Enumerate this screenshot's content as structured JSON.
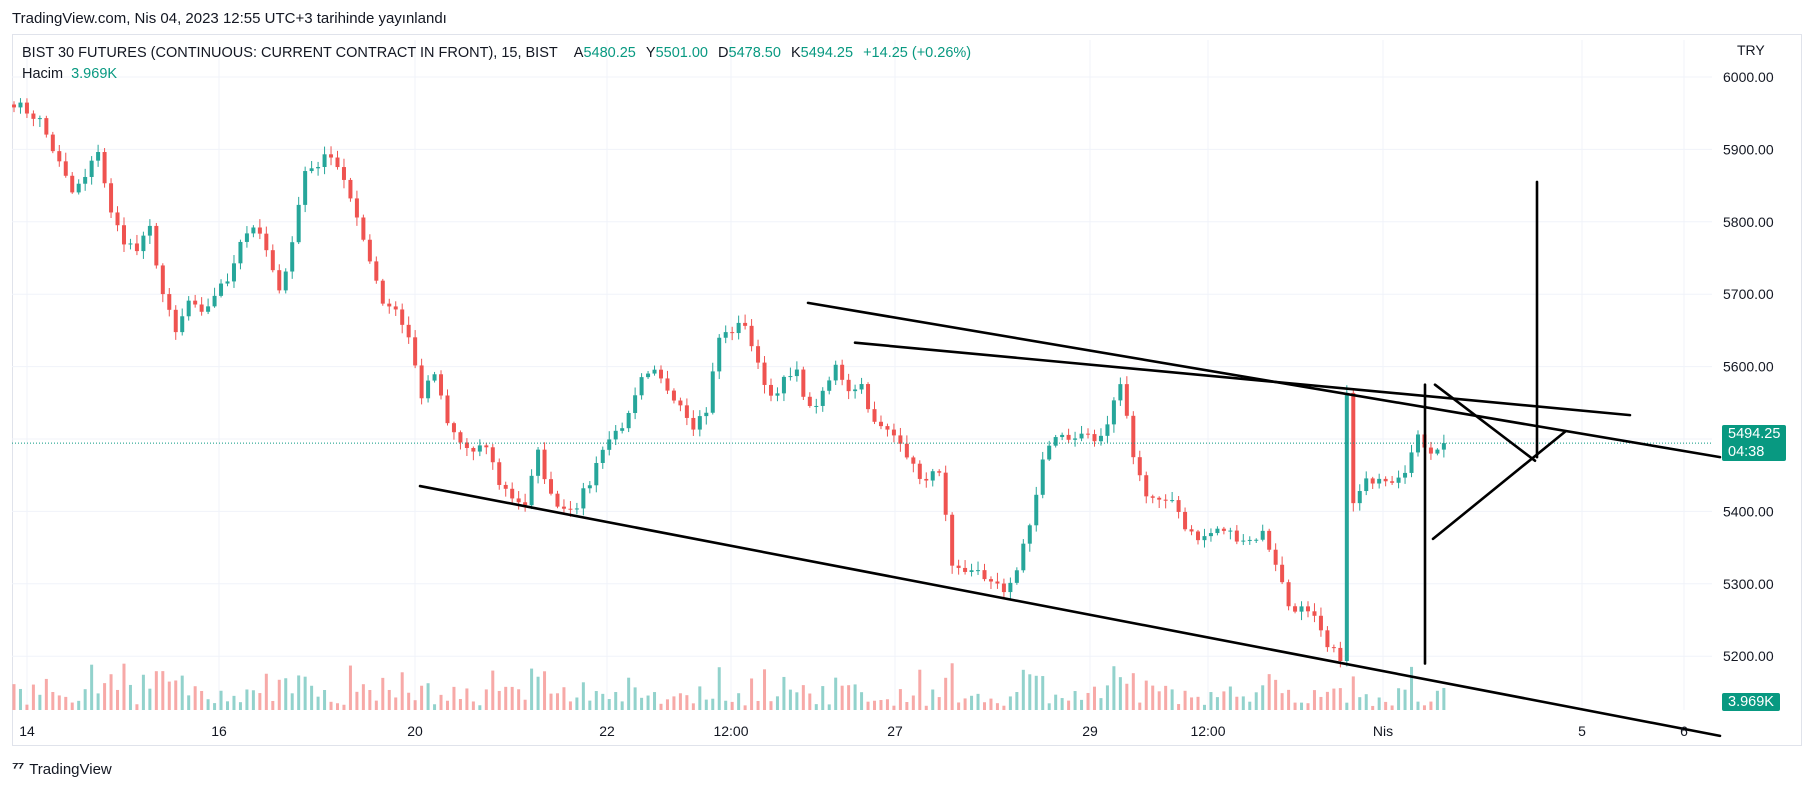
{
  "header": {
    "published": "TradingView.com, Nis 04, 2023 12:55 UTC+3 tarihinde yayınlandı"
  },
  "legend": {
    "symbol": "BIST 30 FUTURES (CONTINUOUS: CURRENT CONTRACT IN FRONT), 15, BIST",
    "open_label": "A",
    "open_value": "5480.25",
    "high_label": "Y",
    "high_value": "5501.00",
    "low_label": "D",
    "low_value": "5478.50",
    "close_label": "K",
    "close_value": "5494.25",
    "change": "+14.25 (+0.26%)",
    "volume_label": "Hacim",
    "volume_value": "3.969K"
  },
  "price_axis": {
    "currency": "TRY",
    "last_price": "5494.25",
    "countdown": "04:38",
    "volume_badge": "3.969K"
  },
  "footer": {
    "brand": "TradingView"
  },
  "colors": {
    "up": "#26a69a",
    "down": "#ef5350",
    "accent": "#089981",
    "drawing": "#000000"
  },
  "chart_data": {
    "type": "candlestick",
    "timeframe": "15",
    "y_ticks": [
      "6000.00",
      "5900.00",
      "5800.00",
      "5700.00",
      "5600.00",
      "5500.00",
      "5400.00",
      "5300.00",
      "5200.00"
    ],
    "x_ticks": [
      "14",
      "16",
      "20",
      "22",
      "12:00",
      "27",
      "29",
      "12:00",
      "Nis",
      "5",
      "6"
    ],
    "ylim": [
      5135,
      6070
    ],
    "last_price": 5494.25,
    "price_path": [
      [
        0,
        5965
      ],
      [
        4,
        5940
      ],
      [
        7,
        5880
      ],
      [
        9,
        5840
      ],
      [
        11,
        5860
      ],
      [
        13,
        5900
      ],
      [
        15,
        5810
      ],
      [
        17,
        5775
      ],
      [
        19,
        5760
      ],
      [
        21,
        5790
      ],
      [
        23,
        5700
      ],
      [
        25,
        5645
      ],
      [
        27,
        5690
      ],
      [
        29,
        5670
      ],
      [
        31,
        5700
      ],
      [
        33,
        5720
      ],
      [
        35,
        5775
      ],
      [
        37,
        5795
      ],
      [
        39,
        5760
      ],
      [
        41,
        5700
      ],
      [
        43,
        5775
      ],
      [
        45,
        5870
      ],
      [
        47,
        5880
      ],
      [
        49,
        5895
      ],
      [
        51,
        5860
      ],
      [
        53,
        5800
      ],
      [
        55,
        5750
      ],
      [
        57,
        5690
      ],
      [
        59,
        5680
      ],
      [
        61,
        5640
      ],
      [
        63,
        5560
      ],
      [
        65,
        5590
      ],
      [
        67,
        5520
      ],
      [
        69,
        5495
      ],
      [
        71,
        5480
      ],
      [
        73,
        5490
      ],
      [
        75,
        5440
      ],
      [
        77,
        5420
      ],
      [
        79,
        5410
      ],
      [
        81,
        5480
      ],
      [
        83,
        5420
      ],
      [
        85,
        5405
      ],
      [
        87,
        5410
      ],
      [
        89,
        5440
      ],
      [
        91,
        5490
      ],
      [
        93,
        5510
      ],
      [
        95,
        5530
      ],
      [
        97,
        5580
      ],
      [
        99,
        5590
      ],
      [
        101,
        5570
      ],
      [
        103,
        5550
      ],
      [
        105,
        5520
      ],
      [
        107,
        5540
      ],
      [
        109,
        5640
      ],
      [
        111,
        5650
      ],
      [
        113,
        5660
      ],
      [
        115,
        5600
      ],
      [
        117,
        5560
      ],
      [
        119,
        5580
      ],
      [
        121,
        5590
      ],
      [
        123,
        5540
      ],
      [
        125,
        5560
      ],
      [
        127,
        5600
      ],
      [
        129,
        5570
      ],
      [
        131,
        5575
      ],
      [
        133,
        5520
      ],
      [
        135,
        5510
      ],
      [
        137,
        5500
      ],
      [
        139,
        5460
      ],
      [
        141,
        5440
      ],
      [
        143,
        5460
      ],
      [
        145,
        5320
      ],
      [
        147,
        5310
      ],
      [
        149,
        5320
      ],
      [
        151,
        5300
      ],
      [
        153,
        5290
      ],
      [
        155,
        5320
      ],
      [
        157,
        5380
      ],
      [
        159,
        5470
      ],
      [
        161,
        5505
      ],
      [
        163,
        5500
      ],
      [
        165,
        5510
      ],
      [
        167,
        5490
      ],
      [
        169,
        5515
      ],
      [
        171,
        5580
      ],
      [
        173,
        5480
      ],
      [
        175,
        5420
      ],
      [
        177,
        5410
      ],
      [
        179,
        5420
      ],
      [
        181,
        5380
      ],
      [
        183,
        5360
      ],
      [
        185,
        5370
      ],
      [
        187,
        5375
      ],
      [
        189,
        5365
      ],
      [
        191,
        5360
      ],
      [
        193,
        5370
      ],
      [
        195,
        5330
      ],
      [
        197,
        5270
      ],
      [
        199,
        5265
      ],
      [
        201,
        5250
      ],
      [
        203,
        5210
      ],
      [
        205,
        5200
      ],
      [
        206,
        5560
      ],
      [
        207,
        5410
      ],
      [
        209,
        5440
      ],
      [
        211,
        5450
      ],
      [
        213,
        5445
      ],
      [
        215,
        5460
      ],
      [
        217,
        5500
      ],
      [
        219,
        5485
      ],
      [
        221,
        5494
      ]
    ],
    "drawings": [
      {
        "type": "trendline",
        "from": [
          "20",
          5435
        ],
        "to": [
          "6",
          5090
        ]
      },
      {
        "type": "trendline",
        "from": [
          "24",
          5688
        ],
        "to": [
          "6",
          5475
        ]
      },
      {
        "type": "trendline",
        "from": [
          "26",
          5633
        ],
        "to": [
          "5",
          5533
        ]
      },
      {
        "type": "trendline",
        "from": [
          "Nis",
          5575
        ],
        "to": [
          "Nis",
          5190
        ]
      },
      {
        "type": "trendline",
        "from": [
          "Nis",
          5362
        ],
        "to": [
          "5",
          5510
        ]
      },
      {
        "type": "trendline",
        "from": [
          "Nis",
          5575
        ],
        "to": [
          "5",
          5470
        ]
      },
      {
        "type": "trendline",
        "from": [
          "5",
          5855
        ],
        "to": [
          "5",
          5475
        ]
      }
    ]
  }
}
